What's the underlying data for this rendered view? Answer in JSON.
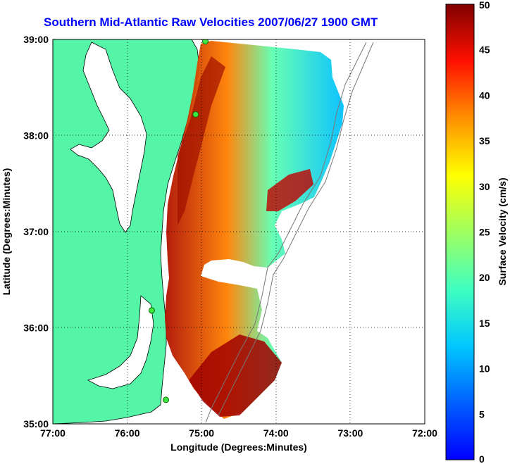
{
  "map": {
    "title": "Southern Mid-Atlantic Raw Velocities 2007/06/27 1900 GMT",
    "xlabel": "Longitude (Degrees:Minutes)",
    "ylabel": "Latitude (Degrees:Minutes)",
    "x_ticks": [
      "77:00",
      "76:00",
      "75:00",
      "74:00",
      "73:00",
      "72:00"
    ],
    "y_ticks": [
      "39:00",
      "38:00",
      "37:00",
      "36:00",
      "35:00"
    ],
    "lon_range": [
      -77,
      -72
    ],
    "lat_range": [
      35,
      39
    ],
    "grid": "dotted",
    "land_color": "#55f5a8",
    "stations": [
      {
        "lon": -74.95,
        "lat": 38.98
      },
      {
        "lon": -75.08,
        "lat": 38.22
      },
      {
        "lon": -75.67,
        "lat": 36.18
      },
      {
        "lon": -75.48,
        "lat": 35.25
      }
    ]
  },
  "colorbar": {
    "label": "Surface Velocity (cm/s)",
    "ticks": [
      "50",
      "45",
      "40",
      "35",
      "30",
      "25",
      "20",
      "15",
      "10",
      "5",
      "0"
    ],
    "min": 0,
    "max": 50
  }
}
